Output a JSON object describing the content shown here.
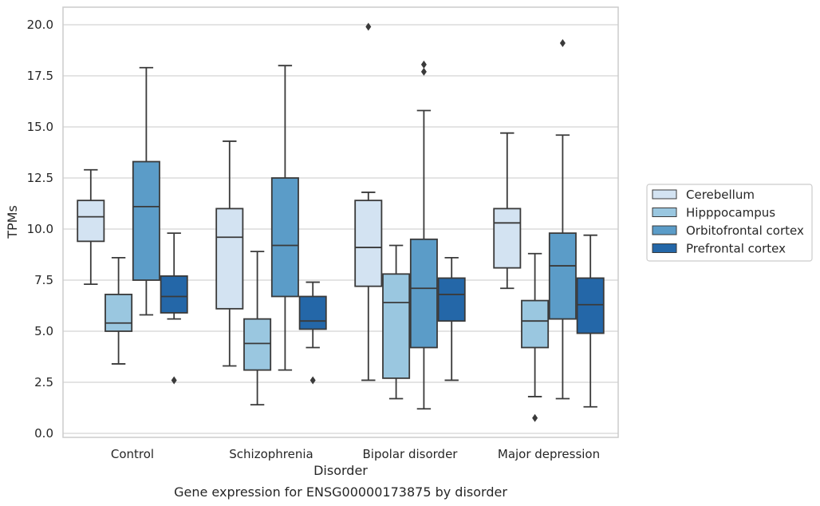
{
  "chart_data": {
    "type": "box",
    "categories": [
      "Control",
      "Schizophrenia",
      "Bipolar disorder",
      "Major depression"
    ],
    "xlabel": "Disorder",
    "ylabel": "TPMs",
    "caption": "Gene expression for ENSG00000173875 by disorder",
    "ylim": [
      -0.2,
      20.8
    ],
    "yticks": [
      "0.0",
      "2.5",
      "5.0",
      "7.5",
      "10.0",
      "12.5",
      "15.0",
      "17.5",
      "20.0"
    ],
    "grid": "horizontal",
    "legend_position": "right",
    "series": [
      {
        "name": "Cerebellum",
        "color": "#d3e3f2",
        "boxes": [
          {
            "whislo": 7.3,
            "q1": 9.4,
            "med": 10.6,
            "q3": 11.4,
            "whishi": 12.9,
            "fliers": []
          },
          {
            "whislo": 3.3,
            "q1": 6.1,
            "med": 9.6,
            "q3": 11.0,
            "whishi": 14.3,
            "fliers": []
          },
          {
            "whislo": 2.6,
            "q1": 7.2,
            "med": 9.1,
            "q3": 11.4,
            "whishi": 11.8,
            "fliers": [
              19.9
            ]
          },
          {
            "whislo": 7.1,
            "q1": 8.1,
            "med": 10.3,
            "q3": 11.0,
            "whishi": 14.7,
            "fliers": []
          }
        ]
      },
      {
        "name": "Hipppocampus",
        "color": "#9ac7e0",
        "boxes": [
          {
            "whislo": 3.4,
            "q1": 5.0,
            "med": 5.4,
            "q3": 6.8,
            "whishi": 8.6,
            "fliers": []
          },
          {
            "whislo": 1.4,
            "q1": 3.1,
            "med": 4.4,
            "q3": 5.6,
            "whishi": 8.9,
            "fliers": []
          },
          {
            "whislo": 1.7,
            "q1": 2.7,
            "med": 6.4,
            "q3": 7.8,
            "whishi": 9.2,
            "fliers": []
          },
          {
            "whislo": 1.8,
            "q1": 4.2,
            "med": 5.5,
            "q3": 6.5,
            "whishi": 8.8,
            "fliers": [
              0.75
            ]
          }
        ]
      },
      {
        "name": "Orbitofrontal cortex",
        "color": "#5b9cc8",
        "boxes": [
          {
            "whislo": 5.8,
            "q1": 7.5,
            "med": 11.1,
            "q3": 13.3,
            "whishi": 17.9,
            "fliers": []
          },
          {
            "whislo": 3.1,
            "q1": 6.7,
            "med": 9.2,
            "q3": 12.5,
            "whishi": 18.0,
            "fliers": []
          },
          {
            "whislo": 1.2,
            "q1": 4.2,
            "med": 7.1,
            "q3": 9.5,
            "whishi": 15.8,
            "fliers": [
              17.7,
              18.05
            ]
          },
          {
            "whislo": 1.7,
            "q1": 5.6,
            "med": 8.2,
            "q3": 9.8,
            "whishi": 14.6,
            "fliers": [
              19.1
            ]
          }
        ]
      },
      {
        "name": "Prefrontal cortex",
        "color": "#2467a8",
        "boxes": [
          {
            "whislo": 5.6,
            "q1": 5.9,
            "med": 6.7,
            "q3": 7.7,
            "whishi": 9.8,
            "fliers": [
              2.6
            ]
          },
          {
            "whislo": 4.2,
            "q1": 5.1,
            "med": 5.5,
            "q3": 6.7,
            "whishi": 7.4,
            "fliers": [
              2.6
            ]
          },
          {
            "whislo": 2.6,
            "q1": 5.5,
            "med": 6.8,
            "q3": 7.6,
            "whishi": 8.6,
            "fliers": []
          },
          {
            "whislo": 1.3,
            "q1": 4.9,
            "med": 6.3,
            "q3": 7.6,
            "whishi": 9.7,
            "fliers": []
          }
        ]
      }
    ]
  }
}
